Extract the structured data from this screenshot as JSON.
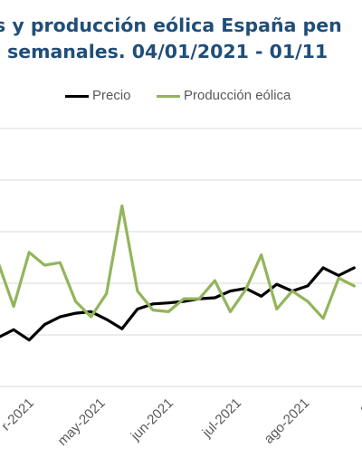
{
  "title": {
    "line1": "s y producción eólica España pen",
    "line2": "semanales. 04/01/2021 - 01/11"
  },
  "colors": {
    "precio": "#000000",
    "eolica": "#92b55a",
    "title": "#1f4e79",
    "grid": "#d9d9d9",
    "tick_text": "#595959"
  },
  "chart_data": {
    "type": "line",
    "title": "s y producción eólica España pen semanales. 04/01/2021 - 01/11",
    "xlabel": "",
    "ylabel": "",
    "grid": true,
    "legend_position": "top",
    "x_tick_labels": [
      "r-2021",
      "may-2021",
      "jun-2021",
      "jul-2021",
      "ago-2021",
      "se"
    ],
    "x_tick_weeks": [
      2,
      6.6,
      11,
      15.4,
      19.8,
      24
    ],
    "x_week_range": [
      0,
      24
    ],
    "ylim": [
      0,
      5
    ],
    "series": [
      {
        "name": "Precio",
        "x": [
          0,
          1,
          2,
          3,
          4,
          5,
          6,
          7,
          8,
          9,
          10,
          11,
          12,
          13,
          14,
          15,
          16,
          17,
          18,
          19,
          20,
          21,
          22,
          23
        ],
        "values": [
          0.95,
          1.1,
          0.9,
          1.2,
          1.35,
          1.42,
          1.45,
          1.3,
          1.12,
          1.5,
          1.6,
          1.62,
          1.65,
          1.7,
          1.72,
          1.85,
          1.9,
          1.75,
          1.98,
          1.85,
          1.95,
          2.3,
          2.15,
          2.3
        ]
      },
      {
        "name": "Producción eólica",
        "x": [
          0,
          1,
          2,
          3,
          4,
          5,
          6,
          7,
          8,
          9,
          10,
          11,
          12,
          13,
          14,
          15,
          16,
          17,
          18,
          19,
          20,
          21,
          22,
          23
        ],
        "values": [
          2.4,
          1.55,
          2.6,
          2.35,
          2.4,
          1.65,
          1.35,
          1.8,
          3.5,
          1.85,
          1.48,
          1.45,
          1.7,
          1.7,
          2.05,
          1.45,
          1.88,
          2.55,
          1.5,
          1.85,
          1.65,
          1.32,
          2.1,
          1.95
        ]
      }
    ]
  }
}
